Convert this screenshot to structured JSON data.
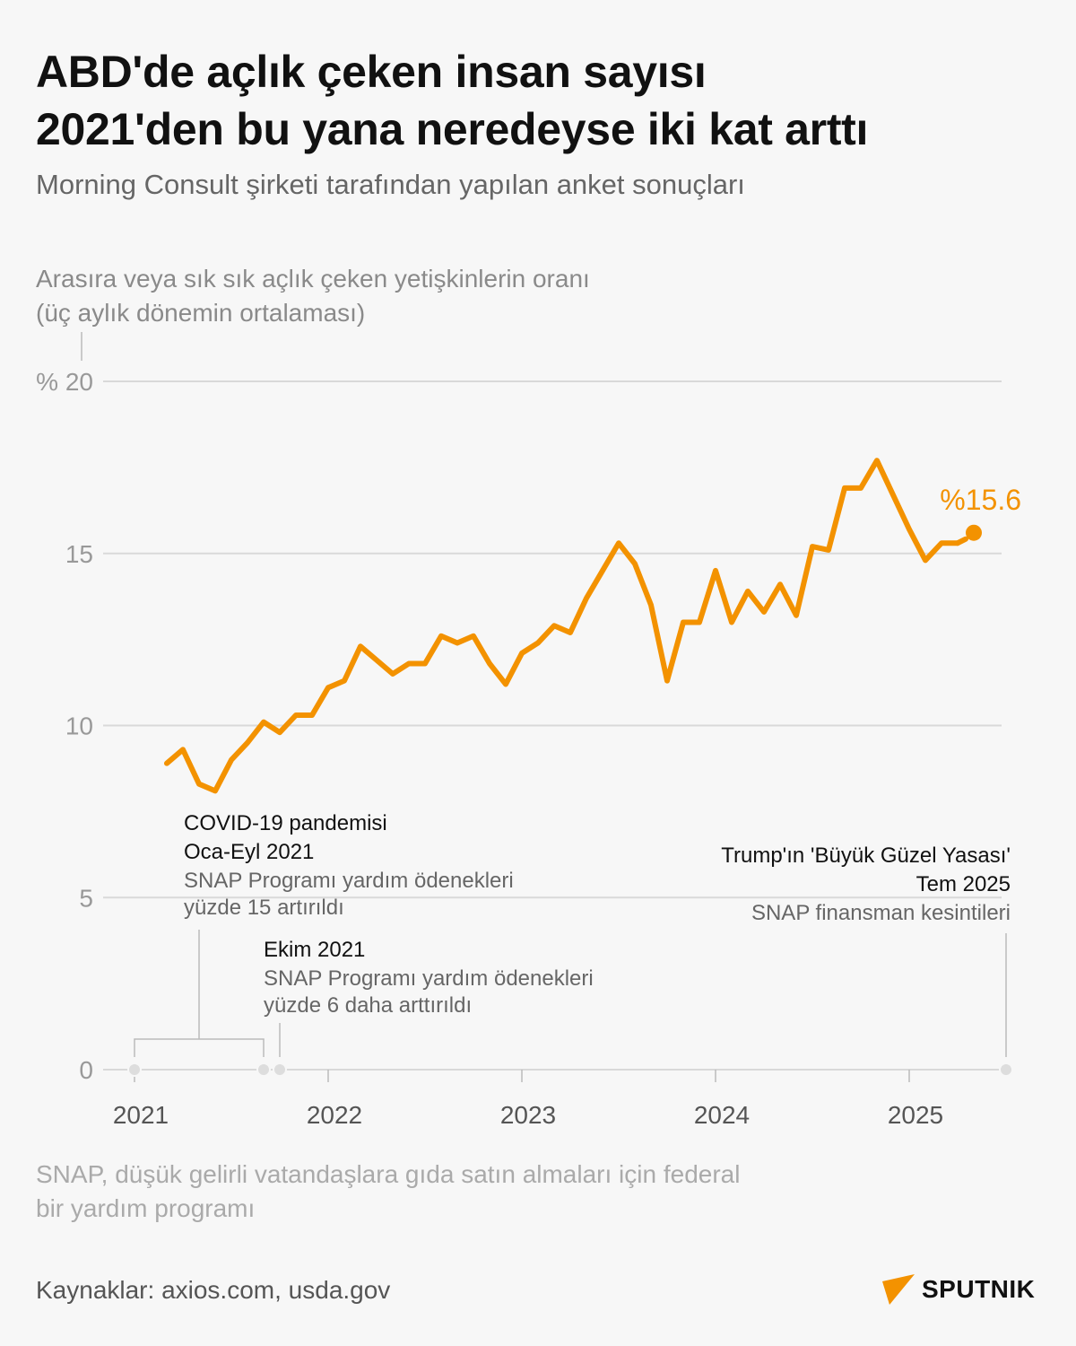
{
  "title_line1": "ABD'de açlık çeken insan sayısı",
  "title_line2": "2021'den bu yana neredeyse iki kat arttı",
  "subtitle": "Morning Consult şirketi tarafından yapılan anket sonuçları",
  "note_line1": "SNAP, düşük gelirli vatandaşlara gıda satın almaları için federal",
  "note_line2": "bir yardım programı",
  "source": "Kaynaklar: axios.com, usda.gov",
  "logo_text": "SPUTNIK",
  "colors": {
    "line": "#f39200",
    "grid": "#d9d9d9",
    "axis_text": "#999999",
    "brand": "#f39200"
  },
  "chart_data": {
    "type": "line",
    "ylabel_line1": "Arasıra veya sık sık açlık çeken yetişkinlerin oranı",
    "ylabel_line2": "(üç aylık dönemin ortalaması)",
    "ylim": [
      0,
      20
    ],
    "yticks": [
      0,
      5,
      10,
      15,
      20
    ],
    "ytick_labels": [
      "0",
      "5",
      "10",
      "15",
      "% 20"
    ],
    "xticks": [
      "2021",
      "2022",
      "2023",
      "2024",
      "2025"
    ],
    "grid": true,
    "x": [
      "2021-03",
      "2021-04",
      "2021-05",
      "2021-06",
      "2021-07",
      "2021-08",
      "2021-09",
      "2021-10",
      "2021-11",
      "2021-12",
      "2022-01",
      "2022-02",
      "2022-03",
      "2022-04",
      "2022-05",
      "2022-06",
      "2022-07",
      "2022-08",
      "2022-09",
      "2022-10",
      "2022-11",
      "2022-12",
      "2023-01",
      "2023-02",
      "2023-03",
      "2023-04",
      "2023-05",
      "2023-06",
      "2023-07",
      "2023-08",
      "2023-09",
      "2023-10",
      "2023-11",
      "2023-12",
      "2024-01",
      "2024-02",
      "2024-03",
      "2024-04",
      "2024-05",
      "2024-06",
      "2024-07",
      "2024-08",
      "2024-09",
      "2024-10",
      "2024-11",
      "2024-12",
      "2025-01",
      "2025-02",
      "2025-03",
      "2025-04",
      "2025-05"
    ],
    "values": [
      8.9,
      9.3,
      8.3,
      8.1,
      9.0,
      9.5,
      10.1,
      9.8,
      10.3,
      10.3,
      11.1,
      11.3,
      12.3,
      11.9,
      11.5,
      11.8,
      11.8,
      12.6,
      12.4,
      12.6,
      11.8,
      11.2,
      12.1,
      12.4,
      12.9,
      12.7,
      13.7,
      14.5,
      15.3,
      14.7,
      13.5,
      11.3,
      13.0,
      13.0,
      14.5,
      13.0,
      13.9,
      13.3,
      14.1,
      13.2,
      15.2,
      15.1,
      16.9,
      16.9,
      17.7,
      16.7,
      15.7,
      14.8,
      15.3,
      15.3,
      15.6
    ],
    "last_label": "%15.6",
    "annotations": [
      {
        "title": "COVID-19 pandemisi",
        "date_label": "Oca-Eyl 2021",
        "text1": "SNAP Programı yardım ödenekleri",
        "text2": "yüzde 15 artırıldı",
        "start": "2021-01",
        "end": "2021-09"
      },
      {
        "date_label": "Ekim 2021",
        "text1": "SNAP Programı yardım ödenekleri",
        "text2": "yüzde 6 daha arttırıldı",
        "start": "2021-10"
      },
      {
        "title": "Trump'ın 'Büyük Güzel Yasası'",
        "date_label": "Tem 2025",
        "text1": "SNAP finansman kesintileri",
        "start": "2025-07"
      }
    ]
  }
}
